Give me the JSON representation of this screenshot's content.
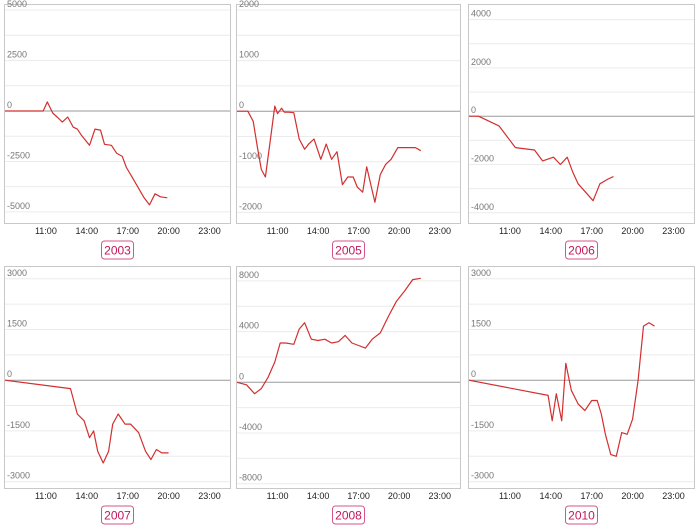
{
  "colors": {
    "line": "#d32f2f",
    "year_label": "#c2185b",
    "year_border": "#d4568c"
  },
  "chart_data": [
    {
      "type": "line",
      "year": "2003",
      "ylim": [
        -5400,
        5000
      ],
      "yticks": [
        "5000",
        "2500",
        "0",
        "-2500",
        "-5000"
      ],
      "xlim": [
        8.0,
        24.5
      ],
      "xticks": [
        "11:00",
        "14:00",
        "17:00",
        "20:00",
        "23:00"
      ],
      "x": [
        8.0,
        10.8,
        11.1,
        11.5,
        11.9,
        12.2,
        12.6,
        13.0,
        13.3,
        13.6,
        14.2,
        14.6,
        15.0,
        15.3,
        15.8,
        16.2,
        16.6,
        16.9,
        17.3,
        17.6,
        18.2,
        18.6,
        19.0,
        19.4,
        19.9
      ],
      "y": [
        0,
        0,
        450,
        -100,
        -350,
        -550,
        -300,
        -800,
        -900,
        -1200,
        -1700,
        -900,
        -950,
        -1650,
        -1700,
        -2100,
        -2250,
        -2800,
        -3250,
        -3600,
        -4300,
        -4650,
        -4100,
        -4250,
        -4300
      ]
    },
    {
      "type": "line",
      "year": "2005",
      "ylim": [
        -2150,
        2000
      ],
      "yticks": [
        "2000",
        "1000",
        "0",
        "-1000",
        "-2000"
      ],
      "xlim": [
        8.0,
        24.5
      ],
      "xticks": [
        "11:00",
        "14:00",
        "17:00",
        "20:00",
        "23:00"
      ],
      "x": [
        8.0,
        8.8,
        9.2,
        9.5,
        9.8,
        10.1,
        10.5,
        10.8,
        11.0,
        11.3,
        11.5,
        11.8,
        12.2,
        12.6,
        13.0,
        13.3,
        13.7,
        14.2,
        14.6,
        15.0,
        15.4,
        15.8,
        16.2,
        16.6,
        16.9,
        17.3,
        17.6,
        18.2,
        18.6,
        19.0,
        19.4,
        19.9,
        20.3,
        21.2,
        21.6
      ],
      "y": [
        0,
        0,
        -200,
        -700,
        -1150,
        -1300,
        -500,
        100,
        -50,
        60,
        -20,
        -20,
        -30,
        -550,
        -750,
        -650,
        -550,
        -950,
        -650,
        -950,
        -800,
        -1450,
        -1300,
        -1300,
        -1500,
        -1600,
        -1100,
        -1800,
        -1250,
        -1050,
        -950,
        -720,
        -720,
        -720,
        -780
      ]
    },
    {
      "type": "line",
      "year": "2006",
      "ylim": [
        -4300,
        4400
      ],
      "yticks": [
        "4000",
        "2000",
        "0",
        "-2000",
        "-4000"
      ],
      "xlim": [
        8.0,
        24.5
      ],
      "xticks": [
        "11:00",
        "14:00",
        "17:00",
        "20:00",
        "23:00"
      ],
      "x": [
        8.0,
        8.7,
        10.2,
        11.4,
        12.8,
        13.4,
        14.2,
        14.7,
        15.2,
        15.6,
        16.0,
        16.4,
        17.1,
        17.6,
        18.2,
        18.6
      ],
      "y": [
        0,
        0,
        -400,
        -1300,
        -1400,
        -1850,
        -1700,
        -2000,
        -1700,
        -2300,
        -2800,
        -3050,
        -3500,
        -2800,
        -2600,
        -2500
      ]
    },
    {
      "type": "line",
      "year": "2007",
      "ylim": [
        -3100,
        3200
      ],
      "yticks": [
        "3000",
        "1500",
        "0",
        "-1500",
        "-3000"
      ],
      "xlim": [
        8.0,
        24.5
      ],
      "xticks": [
        "11:00",
        "14:00",
        "17:00",
        "20:00",
        "23:00"
      ],
      "x": [
        8.0,
        12.8,
        13.3,
        13.8,
        14.2,
        14.5,
        14.8,
        15.2,
        15.6,
        15.9,
        16.3,
        16.8,
        17.2,
        17.8,
        18.3,
        18.7,
        19.1,
        19.5,
        20.0
      ],
      "y": [
        0,
        -250,
        -1000,
        -1200,
        -1700,
        -1500,
        -2100,
        -2450,
        -2100,
        -1300,
        -1000,
        -1300,
        -1300,
        -1550,
        -2100,
        -2350,
        -2050,
        -2150,
        -2150
      ]
    },
    {
      "type": "line",
      "year": "2008",
      "ylim": [
        -8100,
        8700
      ],
      "yticks": [
        "8000",
        "4000",
        "0",
        "-4000",
        "-8000"
      ],
      "xlim": [
        8.0,
        24.5
      ],
      "xticks": [
        "11:00",
        "14:00",
        "17:00",
        "20:00",
        "23:00"
      ],
      "x": [
        8.0,
        8.7,
        9.3,
        9.8,
        10.3,
        10.8,
        11.2,
        11.6,
        12.2,
        12.6,
        13.0,
        13.5,
        14.0,
        14.5,
        15.0,
        15.5,
        16.0,
        16.5,
        17.0,
        17.5,
        18.0,
        18.6,
        19.2,
        19.8,
        20.4,
        21.0,
        21.6
      ],
      "y": [
        0,
        -200,
        -900,
        -500,
        400,
        1600,
        3100,
        3100,
        3000,
        4200,
        4700,
        3400,
        3300,
        3400,
        3100,
        3200,
        3700,
        3100,
        2900,
        2700,
        3400,
        3900,
        5200,
        6400,
        7200,
        8100,
        8200
      ]
    },
    {
      "type": "line",
      "year": "2010",
      "ylim": [
        -3100,
        3200
      ],
      "yticks": [
        "3000",
        "1500",
        "0",
        "-1500",
        "-3000"
      ],
      "xlim": [
        8.0,
        24.5
      ],
      "xticks": [
        "11:00",
        "14:00",
        "17:00",
        "20:00",
        "23:00"
      ],
      "x": [
        8.0,
        13.8,
        14.1,
        14.4,
        14.8,
        15.1,
        15.5,
        16.0,
        16.5,
        17.0,
        17.4,
        17.7,
        18.0,
        18.4,
        18.8,
        19.2,
        19.6,
        20.0,
        20.4,
        20.8,
        21.2,
        21.6
      ],
      "y": [
        0,
        -450,
        -1200,
        -400,
        -1200,
        500,
        -300,
        -700,
        -900,
        -600,
        -600,
        -1000,
        -1600,
        -2200,
        -2250,
        -1550,
        -1600,
        -1150,
        0,
        1600,
        1700,
        1600
      ]
    }
  ]
}
